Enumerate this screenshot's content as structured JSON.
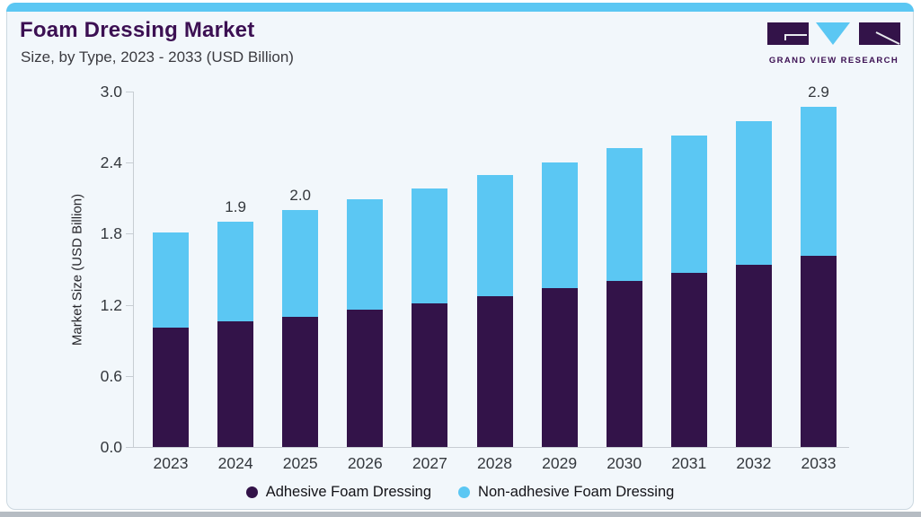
{
  "header": {
    "title": "Foam Dressing Market",
    "subtitle": "Size, by Type, 2023 - 2033 (USD Billion)"
  },
  "logo": {
    "text": "GRAND VIEW RESEARCH",
    "purple": "#331349",
    "blue": "#5bc7f3"
  },
  "chart_data": {
    "type": "bar",
    "stacked": true,
    "title": "Foam Dressing Market Size, by Type, 2023 - 2033 (USD Billion)",
    "categories": [
      "2023",
      "2024",
      "2025",
      "2026",
      "2027",
      "2028",
      "2029",
      "2030",
      "2031",
      "2032",
      "2033"
    ],
    "series": [
      {
        "name": "Adhesive Foam Dressing",
        "color": "#331349",
        "values": [
          1.01,
          1.06,
          1.1,
          1.16,
          1.21,
          1.27,
          1.34,
          1.4,
          1.47,
          1.54,
          1.61
        ]
      },
      {
        "name": "Non-adhesive Foam Dressing",
        "color": "#5bc7f3",
        "values": [
          0.8,
          0.84,
          0.9,
          0.93,
          0.97,
          1.02,
          1.06,
          1.12,
          1.16,
          1.21,
          1.26
        ]
      }
    ],
    "totals": [
      1.81,
      1.9,
      2.0,
      2.09,
      2.18,
      2.29,
      2.4,
      2.52,
      2.63,
      2.75,
      2.87
    ],
    "value_labels": [
      "",
      "1.9",
      "2.0",
      "",
      "",
      "",
      "",
      "",
      "",
      "",
      "2.9"
    ],
    "ylabel": "Market Size (USD Billion)",
    "xlabel": "",
    "yticks": [
      0.0,
      0.6,
      1.2,
      1.8,
      2.4,
      3.0
    ],
    "ylim": [
      0,
      3.0
    ],
    "grid": false,
    "legend_position": "bottom"
  },
  "colors": {
    "card_background": "#f2f7fb",
    "card_border": "#ccd8e0",
    "top_accent": "#5bc7f3",
    "title_text": "#3c1053",
    "axis": "#c7cdd3",
    "tick_text": "#34383d",
    "bottom_strip": "#b6bcc3"
  }
}
